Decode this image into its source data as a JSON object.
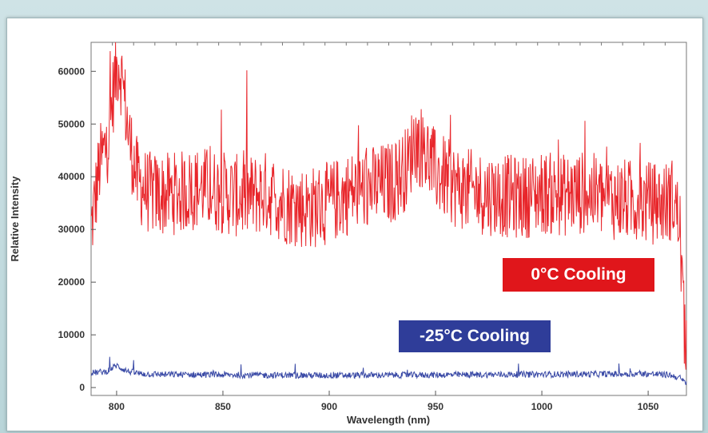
{
  "chart_data": {
    "type": "line",
    "title": "",
    "xlabel": "Wavelength (nm)",
    "ylabel": "Relative Intensity",
    "xlim": [
      788,
      1068
    ],
    "ylim": [
      -1500,
      65500
    ],
    "xticks": [
      800,
      850,
      900,
      950,
      1000,
      1050
    ],
    "yticks": [
      0,
      10000,
      20000,
      30000,
      40000,
      50000,
      60000
    ],
    "xtick_labels": [
      "800",
      "850",
      "900",
      "950",
      "1000",
      "1050"
    ],
    "ytick_labels": [
      "0",
      "10000",
      "20000",
      "30000",
      "40000",
      "50000",
      "60000"
    ],
    "grid": false,
    "series": [
      {
        "name": "0°C Cooling",
        "color": "#e8262b",
        "x": [
          788,
          792,
          796,
          799,
          801,
          803,
          806,
          810,
          815,
          820,
          830,
          840,
          850,
          860,
          870,
          880,
          890,
          900,
          910,
          920,
          930,
          937,
          940,
          945,
          950,
          960,
          970,
          980,
          990,
          1000,
          1010,
          1020,
          1030,
          1040,
          1050,
          1058,
          1062,
          1065,
          1067
        ],
        "values": [
          30000,
          42000,
          47000,
          58000,
          62000,
          57000,
          47000,
          39000,
          37000,
          36500,
          37000,
          38000,
          37000,
          36000,
          37000,
          35000,
          34000,
          35000,
          37000,
          38000,
          39000,
          42000,
          47000,
          45000,
          41000,
          38000,
          37000,
          36500,
          36000,
          37000,
          36500,
          37000,
          36000,
          35500,
          35000,
          35000,
          36000,
          30000,
          10000
        ]
      },
      {
        "name": "-25°C Cooling",
        "color": "#3a4aa6",
        "x": [
          788,
          795,
          800,
          803,
          806,
          812,
          820,
          850,
          900,
          950,
          1000,
          1050,
          1060,
          1065,
          1067
        ],
        "values": [
          2800,
          3000,
          4200,
          3500,
          3000,
          2600,
          2500,
          2400,
          2300,
          2400,
          2500,
          2600,
          2400,
          1800,
          1000
        ]
      }
    ]
  }
}
